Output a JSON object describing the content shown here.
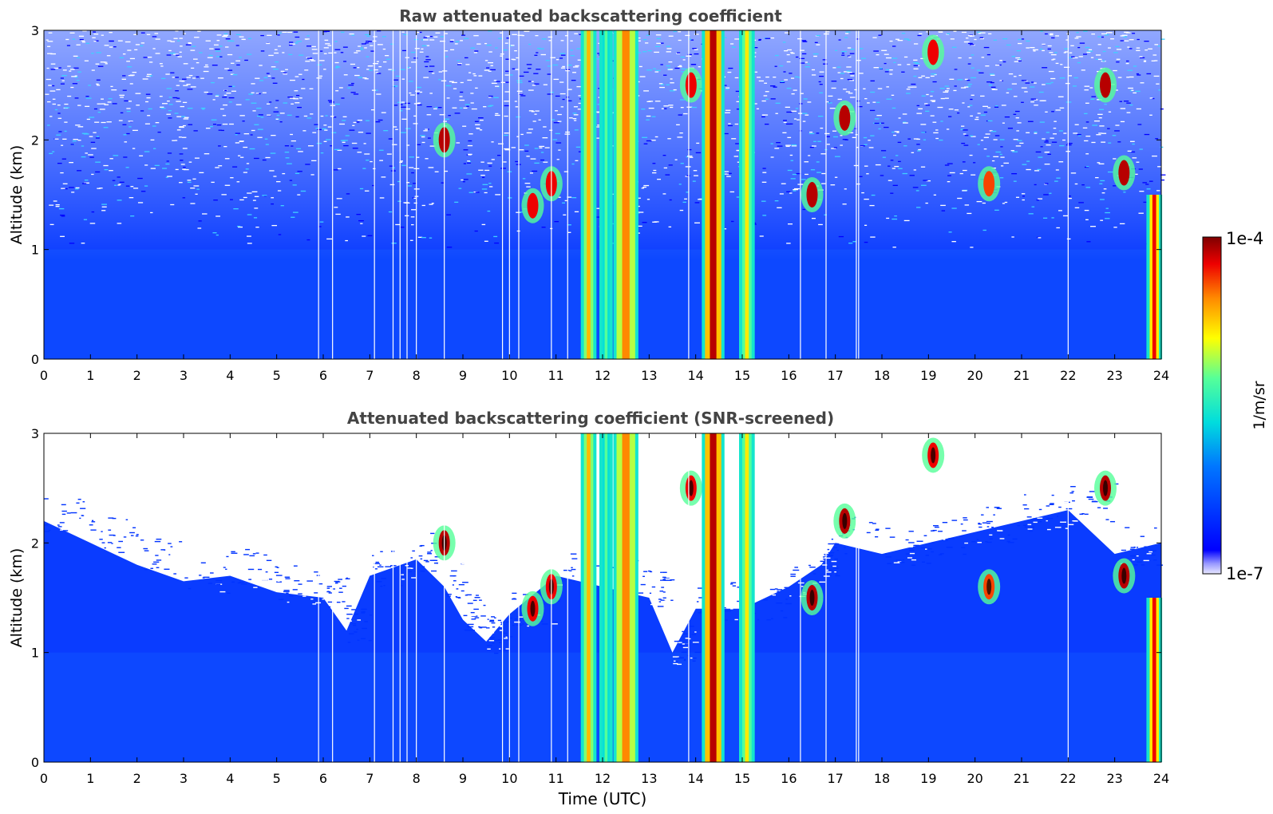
{
  "chart_data": [
    {
      "type": "heatmap",
      "title": "Raw attenuated backscattering coefficient",
      "xlabel": "",
      "ylabel": "Altitude (km)",
      "xlim": [
        0,
        24
      ],
      "ylim": [
        0,
        3
      ],
      "x_ticks": [
        "0",
        "1",
        "2",
        "3",
        "4",
        "5",
        "6",
        "7",
        "8",
        "9",
        "10",
        "11",
        "12",
        "13",
        "14",
        "15",
        "16",
        "17",
        "18",
        "19",
        "20",
        "21",
        "22",
        "23",
        "24"
      ],
      "y_ticks": [
        "0",
        "1",
        "2",
        "3"
      ],
      "screened": false,
      "vertical_plumes": [
        {
          "start": 11.6,
          "end": 11.8,
          "top": 3.0,
          "level": 0.75
        },
        {
          "start": 12.0,
          "end": 12.15,
          "top": 3.0,
          "level": 0.55
        },
        {
          "start": 12.3,
          "end": 12.7,
          "top": 3.0,
          "level": 0.8
        },
        {
          "start": 14.2,
          "end": 14.55,
          "top": 3.0,
          "level": 0.95
        },
        {
          "start": 15.0,
          "end": 15.2,
          "top": 3.0,
          "level": 0.7
        },
        {
          "start": 23.75,
          "end": 23.95,
          "top": 1.5,
          "level": 0.9
        }
      ],
      "cloud_patches": [
        {
          "x": 8.6,
          "y": 2.0,
          "level": 0.95
        },
        {
          "x": 10.5,
          "y": 1.4,
          "level": 0.9
        },
        {
          "x": 10.9,
          "y": 1.6,
          "level": 0.9
        },
        {
          "x": 13.9,
          "y": 2.5,
          "level": 0.9
        },
        {
          "x": 16.5,
          "y": 1.5,
          "level": 0.95
        },
        {
          "x": 17.2,
          "y": 2.2,
          "level": 0.95
        },
        {
          "x": 19.1,
          "y": 2.8,
          "level": 0.9
        },
        {
          "x": 20.3,
          "y": 1.6,
          "level": 0.85
        },
        {
          "x": 22.8,
          "y": 2.5,
          "level": 0.95
        },
        {
          "x": 23.2,
          "y": 1.7,
          "level": 0.95
        }
      ],
      "gaps": [
        5.9,
        6.2,
        7.1,
        7.5,
        7.65,
        7.8,
        8.0,
        8.6,
        9.85,
        10.0,
        10.2,
        10.9,
        11.25,
        13.85,
        16.25,
        16.8,
        17.45,
        17.5,
        22.0
      ]
    },
    {
      "type": "heatmap",
      "title": "Attenuated backscattering coefficient (SNR-screened)",
      "xlabel": "Time (UTC)",
      "ylabel": "Altitude (km)",
      "xlim": [
        0,
        24
      ],
      "ylim": [
        0,
        3
      ],
      "x_ticks": [
        "0",
        "1",
        "2",
        "3",
        "4",
        "5",
        "6",
        "7",
        "8",
        "9",
        "10",
        "11",
        "12",
        "13",
        "14",
        "15",
        "16",
        "17",
        "18",
        "19",
        "20",
        "21",
        "22",
        "23",
        "24"
      ],
      "y_ticks": [
        "0",
        "1",
        "2",
        "3"
      ],
      "screened": true,
      "screen_top_km": [
        [
          0,
          2.2
        ],
        [
          1,
          2.0
        ],
        [
          2,
          1.8
        ],
        [
          3,
          1.65
        ],
        [
          4,
          1.7
        ],
        [
          5,
          1.55
        ],
        [
          6,
          1.5
        ],
        [
          6.5,
          1.2
        ],
        [
          7,
          1.7
        ],
        [
          8,
          1.85
        ],
        [
          8.6,
          1.6
        ],
        [
          9,
          1.3
        ],
        [
          9.5,
          1.1
        ],
        [
          10,
          1.35
        ],
        [
          11,
          1.7
        ],
        [
          12,
          1.6
        ],
        [
          13,
          1.5
        ],
        [
          13.5,
          1.0
        ],
        [
          14,
          1.4
        ],
        [
          15,
          1.4
        ],
        [
          16,
          1.6
        ],
        [
          16.7,
          1.8
        ],
        [
          17,
          2.0
        ],
        [
          18,
          1.9
        ],
        [
          19,
          2.0
        ],
        [
          20,
          2.1
        ],
        [
          21,
          2.2
        ],
        [
          22,
          2.3
        ],
        [
          23,
          1.9
        ],
        [
          24,
          2.0
        ]
      ]
    }
  ],
  "colorbar": {
    "label": "1/m/sr",
    "max_label": "1e-4",
    "min_label": "1e-7"
  },
  "colors": {
    "title": "#444444",
    "axis": "#000000",
    "background": "#ffffff"
  }
}
